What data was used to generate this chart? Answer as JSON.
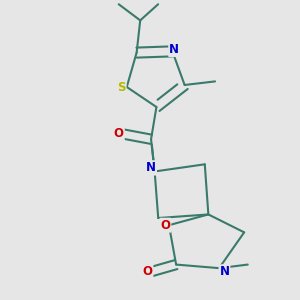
{
  "bg_color": "#e6e6e6",
  "bond_color": "#3a7a6a",
  "bond_width": 1.5,
  "atom_colors": {
    "S": "#b8b800",
    "N": "#0000cc",
    "O": "#cc0000"
  },
  "figsize": [
    3.0,
    3.0
  ],
  "dpi": 100
}
